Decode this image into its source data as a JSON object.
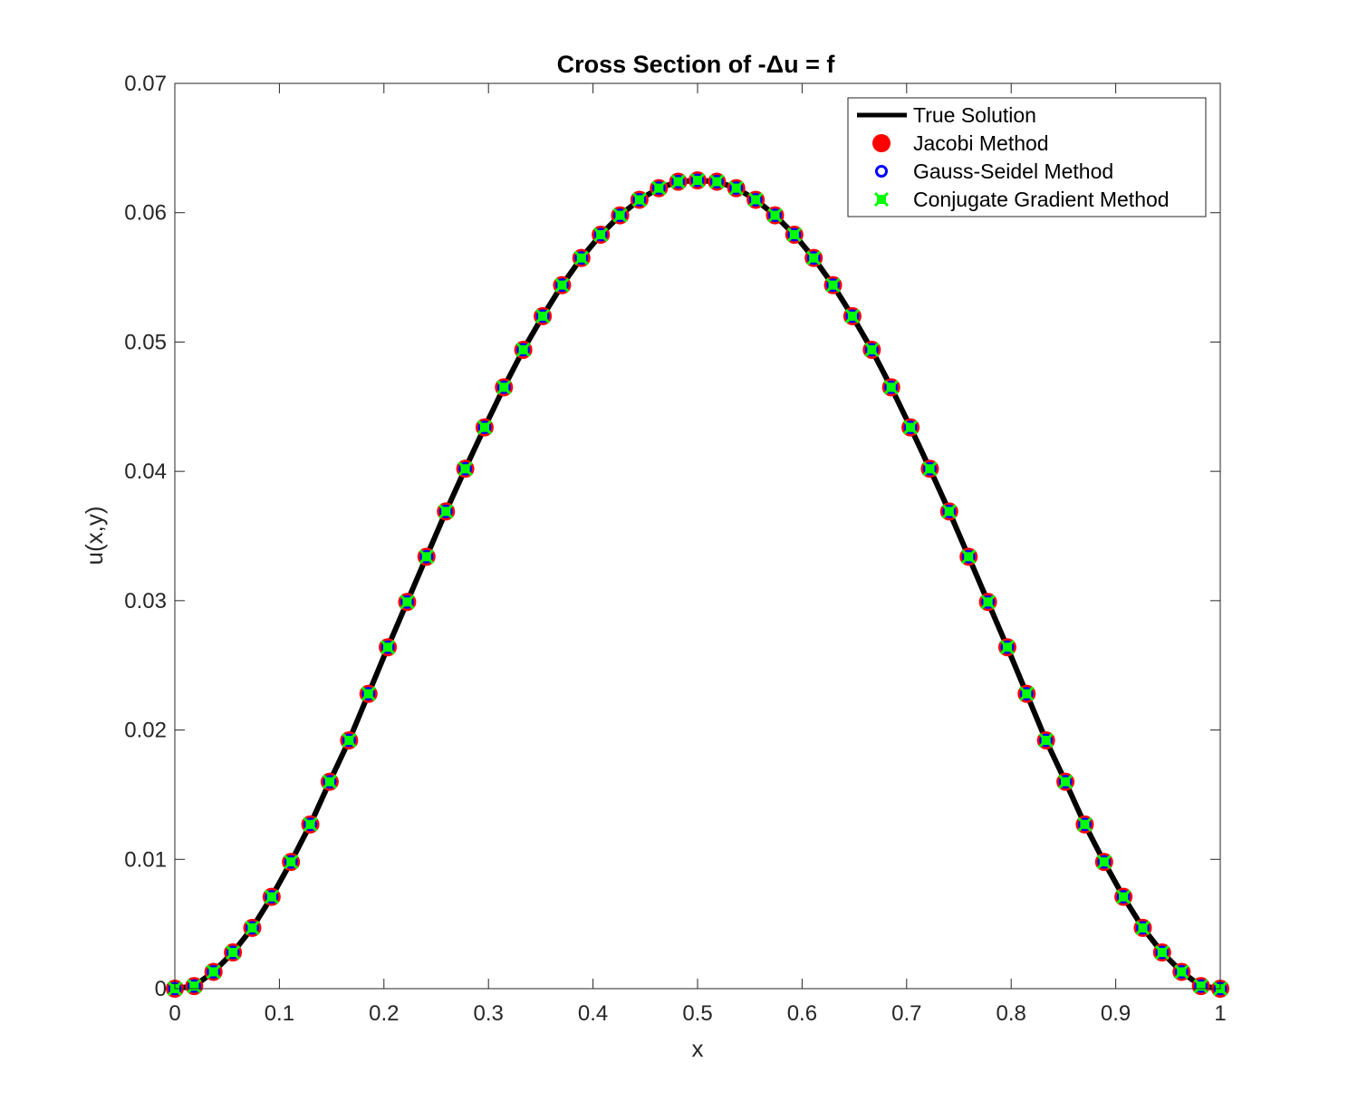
{
  "chart_data": {
    "type": "line",
    "title": "Cross Section of -Δu = f",
    "xlabel": "x",
    "ylabel": "u(x,y)",
    "xlim": [
      0,
      1
    ],
    "ylim": [
      0,
      0.07
    ],
    "x_ticks": [
      0,
      0.1,
      0.2,
      0.3,
      0.4,
      0.5,
      0.6,
      0.7,
      0.8,
      0.9,
      1
    ],
    "x_tick_labels": [
      "0",
      "0.1",
      "0.2",
      "0.3",
      "0.4",
      "0.5",
      "0.6",
      "0.7",
      "0.8",
      "0.9",
      "1"
    ],
    "y_ticks": [
      0,
      0.01,
      0.02,
      0.03,
      0.04,
      0.05,
      0.06,
      0.07
    ],
    "y_tick_labels": [
      "0",
      "0.01",
      "0.02",
      "0.03",
      "0.04",
      "0.05",
      "0.06",
      "0.07"
    ],
    "grid": false,
    "legend_position": "top-right",
    "x": [
      0,
      0.0185,
      0.037,
      0.0556,
      0.0741,
      0.0926,
      0.1111,
      0.1296,
      0.1481,
      0.1667,
      0.1852,
      0.2037,
      0.2222,
      0.2407,
      0.2593,
      0.2778,
      0.2963,
      0.3148,
      0.3333,
      0.3519,
      0.3704,
      0.3889,
      0.4074,
      0.4259,
      0.4444,
      0.463,
      0.4815,
      0.5,
      0.5185,
      0.537,
      0.5556,
      0.5741,
      0.5926,
      0.6111,
      0.6296,
      0.6481,
      0.6667,
      0.6852,
      0.7037,
      0.7222,
      0.7407,
      0.7593,
      0.7778,
      0.7963,
      0.8148,
      0.8333,
      0.8519,
      0.8704,
      0.8889,
      0.9074,
      0.9259,
      0.9444,
      0.963,
      0.9815,
      1
    ],
    "series": [
      {
        "name": "True Solution",
        "style": "line",
        "color": "#000000",
        "values": [
          0,
          0.0002,
          0.0013,
          0.0028,
          0.0047,
          0.0071,
          0.0098,
          0.0127,
          0.016,
          0.0192,
          0.0228,
          0.0264,
          0.0299,
          0.0334,
          0.0369,
          0.0402,
          0.0434,
          0.0465,
          0.0494,
          0.052,
          0.0544,
          0.0565,
          0.0583,
          0.0598,
          0.061,
          0.0619,
          0.0624,
          0.0625,
          0.0624,
          0.0619,
          0.061,
          0.0598,
          0.0583,
          0.0565,
          0.0544,
          0.052,
          0.0494,
          0.0465,
          0.0434,
          0.0402,
          0.0369,
          0.0334,
          0.0299,
          0.0264,
          0.0228,
          0.0192,
          0.016,
          0.0127,
          0.0098,
          0.0071,
          0.0047,
          0.0028,
          0.0013,
          0.0002,
          0
        ]
      },
      {
        "name": "Jacobi Method",
        "style": "marker-circle",
        "color": "#ff0000",
        "values": [
          0,
          0.0002,
          0.0013,
          0.0028,
          0.0047,
          0.0071,
          0.0098,
          0.0127,
          0.016,
          0.0192,
          0.0228,
          0.0264,
          0.0299,
          0.0334,
          0.0369,
          0.0402,
          0.0434,
          0.0465,
          0.0494,
          0.052,
          0.0544,
          0.0565,
          0.0583,
          0.0598,
          0.061,
          0.0619,
          0.0624,
          0.0625,
          0.0624,
          0.0619,
          0.061,
          0.0598,
          0.0583,
          0.0565,
          0.0544,
          0.052,
          0.0494,
          0.0465,
          0.0434,
          0.0402,
          0.0369,
          0.0334,
          0.0299,
          0.0264,
          0.0228,
          0.0192,
          0.016,
          0.0127,
          0.0098,
          0.0071,
          0.0047,
          0.0028,
          0.0013,
          0.0002,
          0
        ]
      },
      {
        "name": "Gauss-Seidel Method",
        "style": "marker-ring",
        "color": "#0000ff",
        "values": [
          0,
          0.0002,
          0.0013,
          0.0028,
          0.0047,
          0.0071,
          0.0098,
          0.0127,
          0.016,
          0.0192,
          0.0228,
          0.0264,
          0.0299,
          0.0334,
          0.0369,
          0.0402,
          0.0434,
          0.0465,
          0.0494,
          0.052,
          0.0544,
          0.0565,
          0.0583,
          0.0598,
          0.061,
          0.0619,
          0.0624,
          0.0625,
          0.0624,
          0.0619,
          0.061,
          0.0598,
          0.0583,
          0.0565,
          0.0544,
          0.052,
          0.0494,
          0.0465,
          0.0434,
          0.0402,
          0.0369,
          0.0334,
          0.0299,
          0.0264,
          0.0228,
          0.0192,
          0.016,
          0.0127,
          0.0098,
          0.0071,
          0.0047,
          0.0028,
          0.0013,
          0.0002,
          0
        ]
      },
      {
        "name": "Conjugate Gradient Method",
        "style": "marker-star",
        "color": "#00ff00",
        "values": [
          0,
          0.0002,
          0.0013,
          0.0028,
          0.0047,
          0.0071,
          0.0098,
          0.0127,
          0.016,
          0.0192,
          0.0228,
          0.0264,
          0.0299,
          0.0334,
          0.0369,
          0.0402,
          0.0434,
          0.0465,
          0.0494,
          0.052,
          0.0544,
          0.0565,
          0.0583,
          0.0598,
          0.061,
          0.0619,
          0.0624,
          0.0625,
          0.0624,
          0.0619,
          0.061,
          0.0598,
          0.0583,
          0.0565,
          0.0544,
          0.052,
          0.0494,
          0.0465,
          0.0434,
          0.0402,
          0.0369,
          0.0334,
          0.0299,
          0.0264,
          0.0228,
          0.0192,
          0.016,
          0.0127,
          0.0098,
          0.0071,
          0.0047,
          0.0028,
          0.0013,
          0.0002,
          0
        ]
      }
    ]
  }
}
